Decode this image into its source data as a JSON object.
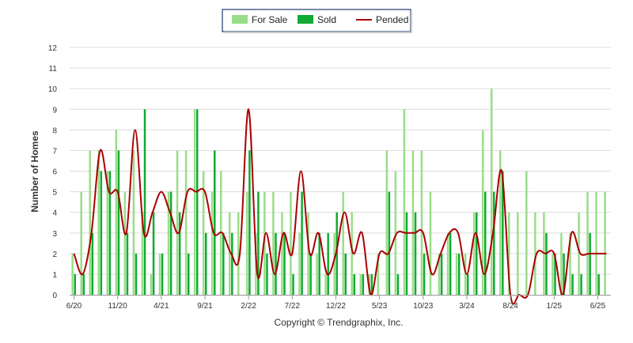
{
  "chart_data": {
    "type": "bar",
    "ylabel": "Number of Homes",
    "ylim": [
      0,
      12
    ],
    "yticks": [
      "0",
      "1",
      "2",
      "3",
      "4",
      "5",
      "6",
      "7",
      "8",
      "9",
      "10",
      "11",
      "12"
    ],
    "xtick_labels": [
      {
        "index": 0,
        "label": "6/20"
      },
      {
        "index": 5,
        "label": "11/20"
      },
      {
        "index": 10,
        "label": "4/21"
      },
      {
        "index": 15,
        "label": "9/21"
      },
      {
        "index": 20,
        "label": "2/22"
      },
      {
        "index": 25,
        "label": "7/22"
      },
      {
        "index": 30,
        "label": "12/22"
      },
      {
        "index": 35,
        "label": "5/23"
      },
      {
        "index": 40,
        "label": "10/23"
      },
      {
        "index": 45,
        "label": "3/24"
      },
      {
        "index": 50,
        "label": "8/24"
      },
      {
        "index": 55,
        "label": "1/25"
      },
      {
        "index": 60,
        "label": "6/25"
      }
    ],
    "series": [
      {
        "name": "For Sale",
        "kind": "bar",
        "color": "#99dd88",
        "values": [
          2,
          5,
          7,
          7,
          6,
          8,
          5,
          7,
          4,
          1,
          2,
          5,
          7,
          7,
          9,
          6,
          5,
          6,
          4,
          4,
          5,
          3,
          5,
          5,
          4,
          5,
          3,
          4,
          2,
          1,
          3,
          5,
          4,
          1,
          1,
          2,
          7,
          6,
          9,
          7,
          7,
          5,
          2,
          3,
          2,
          2,
          4,
          8,
          10,
          7,
          4,
          4,
          6,
          4,
          4,
          2,
          3,
          3,
          4,
          5,
          5,
          5
        ]
      },
      {
        "name": "Sold",
        "kind": "bar",
        "color": "#11aa33",
        "values": [
          1,
          1,
          3,
          6,
          6,
          7,
          3,
          2,
          9,
          4,
          2,
          5,
          4,
          2,
          9,
          3,
          7,
          3,
          3,
          0,
          7,
          5,
          2,
          3,
          3,
          1,
          5,
          2,
          3,
          3,
          4,
          2,
          1,
          1,
          1,
          0,
          5,
          1,
          4,
          4,
          2,
          0,
          2,
          3,
          2,
          1,
          4,
          5,
          5,
          6,
          0,
          0,
          0,
          0,
          3,
          2,
          2,
          1,
          1,
          3,
          1,
          0
        ]
      },
      {
        "name": "Pended",
        "kind": "line",
        "color": "#aa0000",
        "values": [
          2,
          1,
          3,
          7,
          5,
          5,
          3,
          8,
          3,
          4,
          5,
          4,
          3,
          5,
          5,
          5,
          3,
          3,
          2,
          2,
          9,
          1,
          3,
          1,
          3,
          2,
          6,
          2,
          3,
          1,
          2,
          4,
          2,
          3,
          0,
          2,
          2,
          3,
          3,
          3,
          3,
          1,
          2,
          3,
          3,
          1,
          3,
          1,
          3,
          6,
          0,
          0,
          0,
          2,
          2,
          2,
          0,
          3,
          2,
          2,
          2,
          2
        ]
      }
    ]
  },
  "legend": {
    "items": [
      {
        "label": "For Sale",
        "color": "#99dd88",
        "shape": "rect"
      },
      {
        "label": "Sold",
        "color": "#11aa33",
        "shape": "rect"
      },
      {
        "label": "Pended",
        "color": "#aa0000",
        "shape": "line"
      }
    ]
  },
  "credit": "Copyright © Trendgraphix, Inc."
}
